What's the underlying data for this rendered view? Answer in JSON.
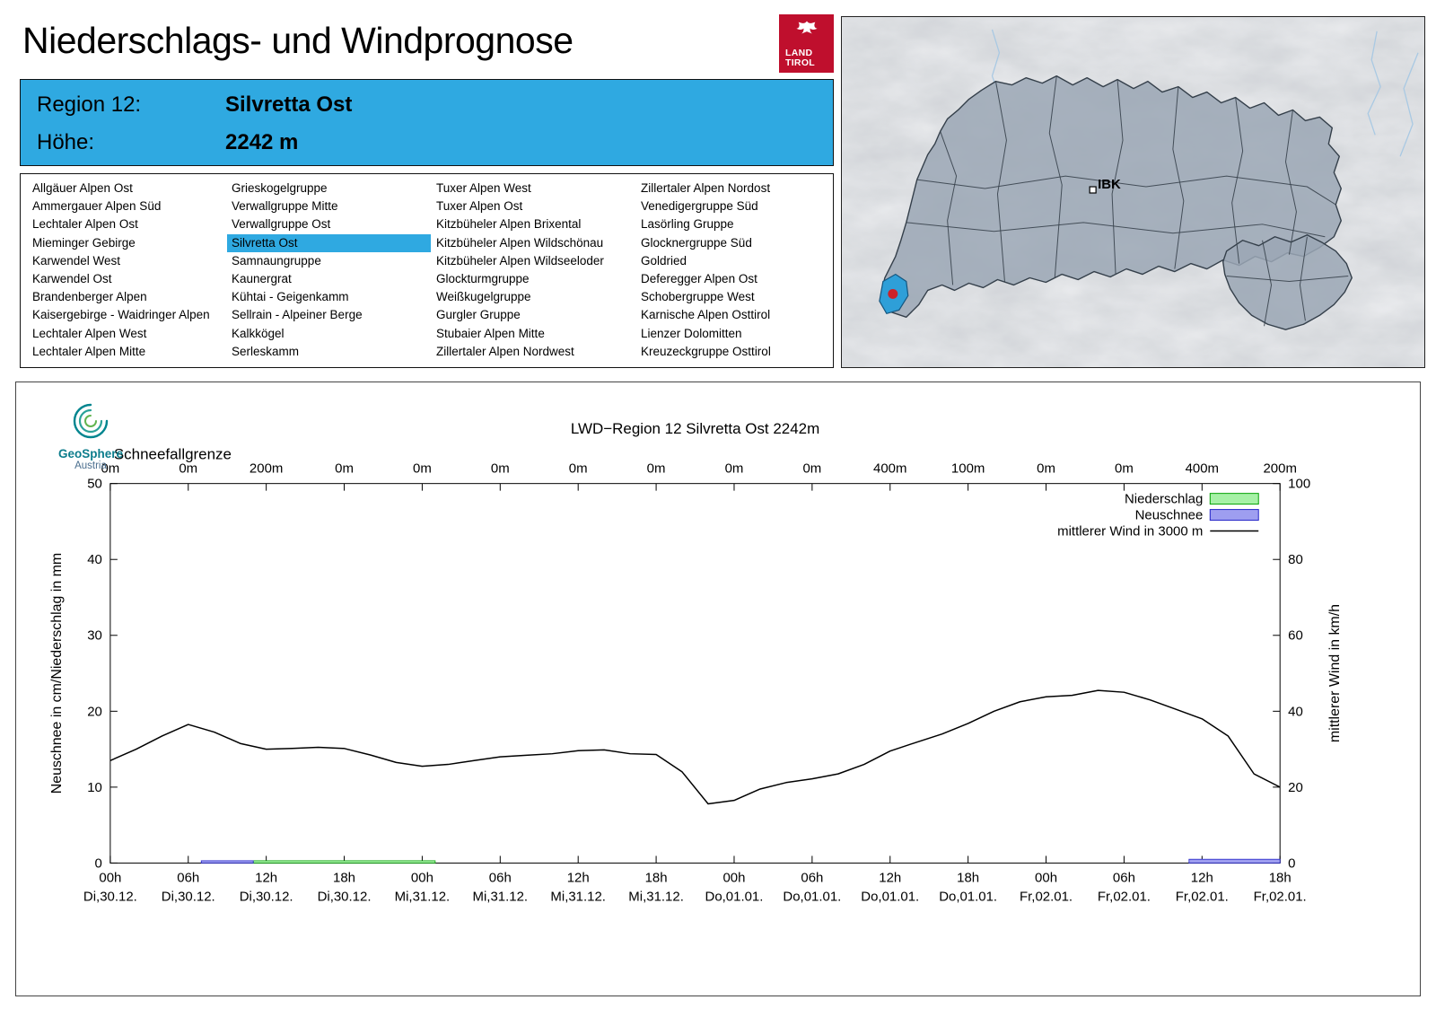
{
  "header": {
    "title": "Niederschlags- und Windprognose",
    "logo": {
      "line1": "LAND",
      "line2": "TIROL"
    }
  },
  "region_header": {
    "rows": [
      {
        "label": "Region 12:",
        "value": "Silvretta Ost"
      },
      {
        "label": "Höhe:",
        "value": "2242 m"
      }
    ]
  },
  "map": {
    "ibk_label": "IBK"
  },
  "region_list": {
    "selected": "Silvretta Ost",
    "columns": [
      [
        "Allgäuer Alpen Ost",
        "Ammergauer Alpen Süd",
        "Lechtaler Alpen Ost",
        "Mieminger Gebirge",
        "Karwendel West",
        "Karwendel Ost",
        "Brandenberger Alpen",
        "Kaisergebirge - Waidringer Alpen",
        "Lechtaler Alpen West",
        "Lechtaler Alpen Mitte"
      ],
      [
        "Grieskogelgruppe",
        "Verwallgruppe Mitte",
        "Verwallgruppe Ost",
        "Silvretta Ost",
        "Samnaungruppe",
        "Kaunergrat",
        "Kühtai - Geigenkamm",
        "Sellrain - Alpeiner Berge",
        "Kalkkögel",
        "Serleskamm"
      ],
      [
        "Tuxer Alpen West",
        "Tuxer Alpen Ost",
        "Kitzbüheler Alpen Brixental",
        "Kitzbüheler Alpen Wildschönau",
        "Kitzbüheler Alpen Wildseeloder",
        "Glockturmgruppe",
        "Weißkugelgruppe",
        "Gurgler Gruppe",
        "Stubaier Alpen Mitte",
        "Zillertaler Alpen Nordwest"
      ],
      [
        "Zillertaler Alpen Nordost",
        "Venedigergruppe Süd",
        "Lasörling Gruppe",
        "Glocknergruppe Süd",
        "Goldried",
        "Deferegger Alpen Ost",
        "Schobergruppe West",
        "Karnische Alpen Osttirol",
        "Lienzer Dolomitten",
        "Kreuzeckgruppe Osttirol"
      ]
    ]
  },
  "geosphere": {
    "name": "GeoSphere",
    "country": "Austria"
  },
  "chart_data": {
    "type": "line",
    "title": "LWD−Region 12 Silvretta Ost 2242m",
    "schneefallgrenze": {
      "label": "Schneefallgrenze",
      "values": [
        "0m",
        "0m",
        "200m",
        "0m",
        "0m",
        "0m",
        "0m",
        "0m",
        "0m",
        "0m",
        "400m",
        "100m",
        "0m",
        "0m",
        "400m",
        "200m"
      ]
    },
    "ylabel_left": "Neuschnee in cm/Niederschlag in mm",
    "ylabel_right": "mittlerer Wind in km/h",
    "ylim_left": [
      0,
      50
    ],
    "ylim_right": [
      0,
      100
    ],
    "yticks_left": [
      0,
      10,
      20,
      30,
      40,
      50
    ],
    "yticks_right": [
      0,
      20,
      40,
      60,
      80,
      100
    ],
    "x_hours_range": [
      0,
      90
    ],
    "x_ticks": [
      {
        "hour": 0,
        "time": "00h",
        "date": "Di,30.12."
      },
      {
        "hour": 6,
        "time": "06h",
        "date": "Di,30.12."
      },
      {
        "hour": 12,
        "time": "12h",
        "date": "Di,30.12."
      },
      {
        "hour": 18,
        "time": "18h",
        "date": "Di,30.12."
      },
      {
        "hour": 24,
        "time": "00h",
        "date": "Mi,31.12."
      },
      {
        "hour": 30,
        "time": "06h",
        "date": "Mi,31.12."
      },
      {
        "hour": 36,
        "time": "12h",
        "date": "Mi,31.12."
      },
      {
        "hour": 42,
        "time": "18h",
        "date": "Mi,31.12."
      },
      {
        "hour": 48,
        "time": "00h",
        "date": "Do,01.01."
      },
      {
        "hour": 54,
        "time": "06h",
        "date": "Do,01.01."
      },
      {
        "hour": 60,
        "time": "12h",
        "date": "Do,01.01."
      },
      {
        "hour": 66,
        "time": "18h",
        "date": "Do,01.01."
      },
      {
        "hour": 72,
        "time": "00h",
        "date": "Fr,02.01."
      },
      {
        "hour": 78,
        "time": "06h",
        "date": "Fr,02.01."
      },
      {
        "hour": 84,
        "time": "12h",
        "date": "Fr,02.01."
      },
      {
        "hour": 90,
        "time": "18h",
        "date": "Fr,02.01."
      }
    ],
    "legend": [
      {
        "label": "Niederschlag",
        "swatch": "box",
        "fill": "#a6f1a6",
        "stroke": "#04a104"
      },
      {
        "label": "Neuschnee",
        "swatch": "box",
        "fill": "#9e9ef0",
        "stroke": "#2424c8"
      },
      {
        "label": "mittlerer Wind in 3000 m",
        "swatch": "line",
        "stroke": "#000000"
      }
    ],
    "wind_series": {
      "name": "mittlerer Wind in 3000 m",
      "axis": "right",
      "x_start_hour": 0,
      "x_step_hours": 2,
      "values_kmh": [
        27,
        30,
        33.5,
        36.5,
        34.5,
        31.5,
        30,
        30.2,
        30.5,
        30.2,
        28.5,
        26.5,
        25.5,
        26,
        27,
        28,
        28.4,
        28.8,
        29.6,
        29.8,
        28.8,
        28.6,
        24,
        15.6,
        16.5,
        19.5,
        21.2,
        22.2,
        23.5,
        26,
        29.5,
        31.8,
        34,
        36.8,
        40,
        42.5,
        43.8,
        44.2,
        45.5,
        45,
        43,
        40.5,
        38,
        33.5,
        23.5,
        20
      ]
    },
    "niederschlag_segments": [
      {
        "from_hour": 11,
        "to_hour": 25,
        "value_mm": 0.3
      }
    ],
    "neuschnee_segments": [
      {
        "from_hour": 7,
        "to_hour": 11,
        "value_cm": 0.3
      },
      {
        "from_hour": 83,
        "to_hour": 90,
        "value_cm": 0.5
      }
    ]
  }
}
